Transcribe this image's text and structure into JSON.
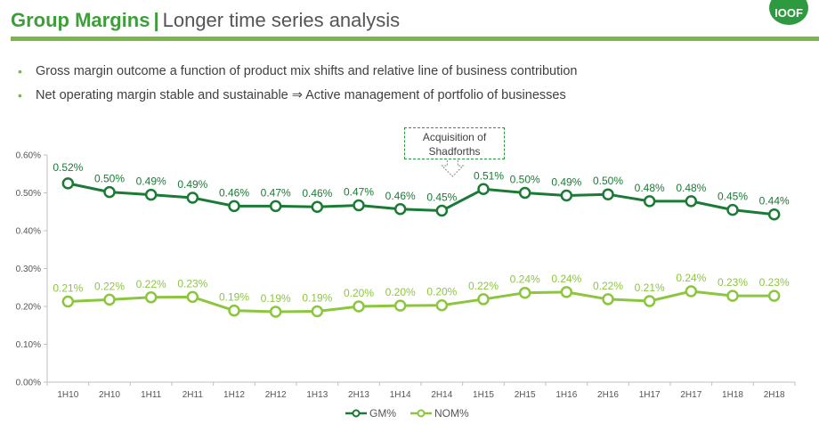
{
  "header": {
    "title_main": "Group Margins",
    "title_sep": "|",
    "title_sub": "Longer time series analysis",
    "logo_text": "IOOF"
  },
  "bullets": [
    "Gross margin outcome a function of product mix shifts and relative line of business contribution",
    "Net operating margin stable and sustainable ⇒ Active management of portfolio of businesses"
  ],
  "colors": {
    "gm": "#1b7a35",
    "nom": "#8cc63f",
    "accent": "#7ab648"
  },
  "chart_data": {
    "type": "line",
    "categories": [
      "1H10",
      "2H10",
      "1H11",
      "2H11",
      "1H12",
      "2H12",
      "1H13",
      "2H13",
      "1H14",
      "2H14",
      "1H15",
      "2H15",
      "1H16",
      "2H16",
      "1H17",
      "2H17",
      "1H18",
      "2H18"
    ],
    "ylim": [
      0,
      0.6
    ],
    "yticks": [
      "0.00%",
      "0.10%",
      "0.20%",
      "0.30%",
      "0.40%",
      "0.50%",
      "0.60%"
    ],
    "grid": false,
    "legend_position": "bottom",
    "annotation": "Acquisition of Shadforths",
    "series": [
      {
        "name": "GM%",
        "values": [
          0.525,
          0.502,
          0.495,
          0.487,
          0.465,
          0.465,
          0.463,
          0.467,
          0.457,
          0.453,
          0.51,
          0.5,
          0.493,
          0.496,
          0.478,
          0.478,
          0.455,
          0.443
        ],
        "labels": [
          "0.52%",
          "0.50%",
          "0.49%",
          "0.49%",
          "0.46%",
          "0.47%",
          "0.46%",
          "0.47%",
          "0.46%",
          "0.45%",
          "0.51%",
          "0.50%",
          "0.49%",
          "0.50%",
          "0.48%",
          "0.48%",
          "0.45%",
          "0.44%"
        ]
      },
      {
        "name": "NOM%",
        "values": [
          0.213,
          0.218,
          0.224,
          0.225,
          0.189,
          0.186,
          0.187,
          0.2,
          0.202,
          0.203,
          0.219,
          0.236,
          0.238,
          0.219,
          0.214,
          0.24,
          0.228,
          0.228
        ],
        "labels": [
          "0.21%",
          "0.22%",
          "0.22%",
          "0.23%",
          "0.19%",
          "0.19%",
          "0.19%",
          "0.20%",
          "0.20%",
          "0.20%",
          "0.22%",
          "0.24%",
          "0.24%",
          "0.22%",
          "0.21%",
          "0.24%",
          "0.23%",
          "0.23%"
        ]
      }
    ]
  }
}
